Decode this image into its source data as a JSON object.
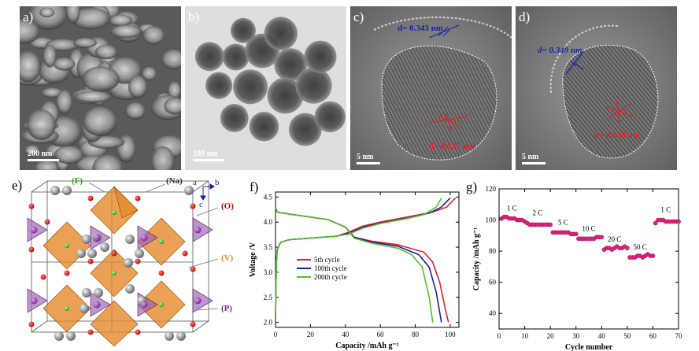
{
  "panels": {
    "a": {
      "letter": "a)",
      "scale": "200 nm"
    },
    "b": {
      "letter": "b)",
      "scale": "100 nm"
    },
    "c": {
      "letter": "c)",
      "scale": "5 nm",
      "d_blue": "d= 0.343 nm",
      "d_red": "d= 0.537 nm"
    },
    "d": {
      "letter": "d)",
      "scale": "5 nm",
      "d_blue": "d= 0.349 nm",
      "d_red": "d= 0.528 nm"
    },
    "e": {
      "letter": "e)",
      "labels": {
        "F": "(F)",
        "Na": "(Na)",
        "O": "(O)",
        "V": "(V)",
        "P": "(P)",
        "ax_a": "a",
        "ax_b": "b",
        "ax_c": "c"
      }
    },
    "f": {
      "letter": "f)"
    },
    "g": {
      "letter": "g)"
    }
  },
  "colors": {
    "red": "#e8202a",
    "blue": "#1c1fa4",
    "green": "#56c02a",
    "magenta": "#e0217a",
    "orange": "#e58a2a",
    "purple": "#9b5db0"
  },
  "chart_data": [
    {
      "type": "line",
      "panel": "f",
      "xlabel": "Capacity /mAh g⁻¹",
      "ylabel": "Voltage /V",
      "xlim": [
        0,
        105
      ],
      "ylim": [
        1.9,
        4.6
      ],
      "xticks": [
        0,
        20,
        40,
        60,
        80,
        100
      ],
      "yticks": [
        2.0,
        2.5,
        3.0,
        3.5,
        4.0,
        4.5
      ],
      "xtick_labels": [
        "0",
        "20",
        "40",
        "60",
        "80",
        "100"
      ],
      "ytick_labels": [
        "2.0",
        "2.5",
        "3.0",
        "3.5",
        "4.0",
        "4.5"
      ],
      "legend": {
        "placement": "middle-left"
      },
      "series": [
        {
          "name": "5th cycle",
          "color": "#e8202a",
          "charge": [
            [
              0,
              2.1
            ],
            [
              0.5,
              3.2
            ],
            [
              1,
              3.45
            ],
            [
              3,
              3.6
            ],
            [
              8,
              3.65
            ],
            [
              20,
              3.68
            ],
            [
              35,
              3.72
            ],
            [
              42,
              3.8
            ],
            [
              50,
              3.92
            ],
            [
              60,
              4.0
            ],
            [
              75,
              4.1
            ],
            [
              90,
              4.2
            ],
            [
              98,
              4.3
            ],
            [
              103,
              4.48
            ]
          ],
          "discharge": [
            [
              0,
              4.3
            ],
            [
              1,
              4.2
            ],
            [
              10,
              4.15
            ],
            [
              30,
              4.05
            ],
            [
              40,
              3.9
            ],
            [
              45,
              3.7
            ],
            [
              55,
              3.62
            ],
            [
              70,
              3.55
            ],
            [
              85,
              3.4
            ],
            [
              90,
              3.2
            ],
            [
              94,
              2.8
            ],
            [
              97,
              2.3
            ],
            [
              99,
              2.0
            ]
          ]
        },
        {
          "name": "100th cycle",
          "color": "#1c1fa4",
          "charge": [
            [
              0,
              2.1
            ],
            [
              0.5,
              3.2
            ],
            [
              1,
              3.45
            ],
            [
              3,
              3.6
            ],
            [
              8,
              3.65
            ],
            [
              20,
              3.68
            ],
            [
              35,
              3.72
            ],
            [
              42,
              3.78
            ],
            [
              50,
              3.9
            ],
            [
              60,
              3.98
            ],
            [
              75,
              4.08
            ],
            [
              88,
              4.18
            ],
            [
              95,
              4.3
            ],
            [
              100,
              4.48
            ]
          ],
          "discharge": [
            [
              0,
              4.3
            ],
            [
              1,
              4.2
            ],
            [
              10,
              4.15
            ],
            [
              30,
              4.05
            ],
            [
              40,
              3.9
            ],
            [
              45,
              3.7
            ],
            [
              55,
              3.6
            ],
            [
              70,
              3.52
            ],
            [
              82,
              3.35
            ],
            [
              88,
              3.1
            ],
            [
              92,
              2.6
            ],
            [
              95,
              2.0
            ]
          ]
        },
        {
          "name": "200th cycle",
          "color": "#56c02a",
          "charge": [
            [
              0,
              2.1
            ],
            [
              0.5,
              3.2
            ],
            [
              1,
              3.45
            ],
            [
              3,
              3.6
            ],
            [
              8,
              3.65
            ],
            [
              20,
              3.68
            ],
            [
              35,
              3.72
            ],
            [
              42,
              3.76
            ],
            [
              50,
              3.88
            ],
            [
              60,
              3.97
            ],
            [
              75,
              4.07
            ],
            [
              85,
              4.15
            ],
            [
              92,
              4.3
            ],
            [
              95,
              4.48
            ]
          ],
          "discharge": [
            [
              0,
              4.3
            ],
            [
              1,
              4.2
            ],
            [
              10,
              4.15
            ],
            [
              30,
              4.05
            ],
            [
              40,
              3.9
            ],
            [
              45,
              3.68
            ],
            [
              55,
              3.58
            ],
            [
              70,
              3.48
            ],
            [
              78,
              3.35
            ],
            [
              84,
              3.1
            ],
            [
              88,
              2.5
            ],
            [
              90,
              2.0
            ]
          ]
        }
      ]
    },
    {
      "type": "scatter",
      "panel": "g",
      "xlabel": "Cycle number",
      "ylabel": "Capacity /mAh g⁻¹",
      "xlim": [
        0,
        70
      ],
      "ylim": [
        30,
        120
      ],
      "xticks": [
        0,
        10,
        20,
        30,
        40,
        50,
        60,
        70
      ],
      "yticks": [
        40,
        60,
        80,
        100,
        120
      ],
      "xtick_labels": [
        "0",
        "10",
        "20",
        "30",
        "40",
        "50",
        "60",
        "70"
      ],
      "ytick_labels": [
        "40",
        "60",
        "80",
        "100",
        "120"
      ],
      "rate_labels": [
        {
          "text": "1 C",
          "x": 5,
          "y": 106
        },
        {
          "text": "2 C",
          "x": 15,
          "y": 103
        },
        {
          "text": "5 C",
          "x": 25,
          "y": 97
        },
        {
          "text": "10 C",
          "x": 35,
          "y": 93
        },
        {
          "text": "20 C",
          "x": 45,
          "y": 86
        },
        {
          "text": "50 C",
          "x": 55,
          "y": 81
        },
        {
          "text": "1 C",
          "x": 65,
          "y": 105
        }
      ],
      "series": [
        {
          "color": "#e0217a",
          "points": [
            [
              1,
              101
            ],
            [
              2,
              102
            ],
            [
              3,
              102
            ],
            [
              4,
              101
            ],
            [
              5,
              101
            ],
            [
              6,
              101
            ],
            [
              7,
              100
            ],
            [
              8,
              100
            ],
            [
              9,
              100
            ],
            [
              10,
              99
            ],
            [
              11,
              98
            ],
            [
              12,
              97
            ],
            [
              13,
              97
            ],
            [
              14,
              97
            ],
            [
              15,
              97
            ],
            [
              16,
              97
            ],
            [
              17,
              97
            ],
            [
              18,
              97
            ],
            [
              19,
              97
            ],
            [
              20,
              97
            ],
            [
              21,
              92
            ],
            [
              22,
              92
            ],
            [
              23,
              92
            ],
            [
              24,
              92
            ],
            [
              25,
              92
            ],
            [
              26,
              92
            ],
            [
              27,
              92
            ],
            [
              28,
              91
            ],
            [
              29,
              91
            ],
            [
              30,
              91
            ],
            [
              31,
              88
            ],
            [
              32,
              88
            ],
            [
              33,
              88
            ],
            [
              34,
              88
            ],
            [
              35,
              88
            ],
            [
              36,
              88
            ],
            [
              37,
              88
            ],
            [
              38,
              89
            ],
            [
              39,
              89
            ],
            [
              40,
              89
            ],
            [
              41,
              81
            ],
            [
              42,
              82
            ],
            [
              43,
              82
            ],
            [
              44,
              81
            ],
            [
              45,
              82
            ],
            [
              46,
              83
            ],
            [
              47,
              82
            ],
            [
              48,
              82
            ],
            [
              49,
              83
            ],
            [
              50,
              82
            ],
            [
              51,
              76
            ],
            [
              52,
              76
            ],
            [
              53,
              76
            ],
            [
              54,
              77
            ],
            [
              55,
              77
            ],
            [
              56,
              76
            ],
            [
              57,
              77
            ],
            [
              58,
              78
            ],
            [
              59,
              77
            ],
            [
              60,
              77
            ],
            [
              61,
              98
            ],
            [
              62,
              100
            ],
            [
              63,
              100
            ],
            [
              64,
              100
            ],
            [
              65,
              99
            ],
            [
              66,
              99
            ],
            [
              67,
              99
            ],
            [
              68,
              99
            ],
            [
              69,
              99
            ],
            [
              70,
              99
            ]
          ]
        }
      ]
    }
  ]
}
